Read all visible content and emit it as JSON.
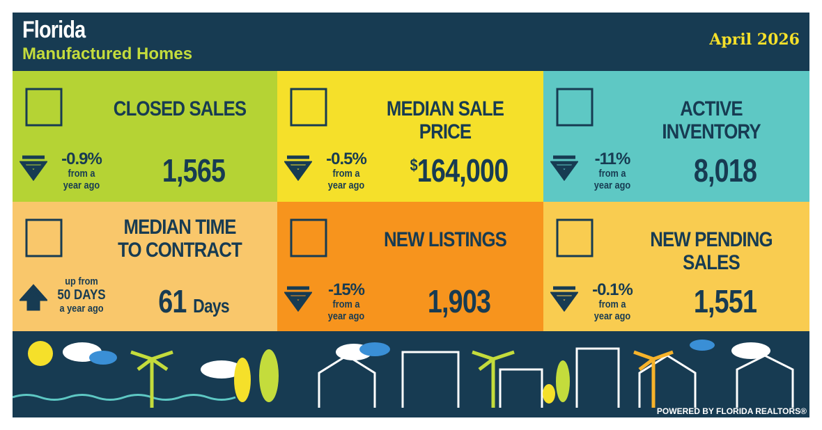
{
  "header": {
    "title": "Florida",
    "subtitle": "Manufactured Homes",
    "date": "April 2026"
  },
  "tiles": [
    {
      "title_lines": [
        "CLOSED SALES"
      ],
      "change": "-0.9%",
      "note_lines": [
        "from a",
        "year ago"
      ],
      "value": "1,565"
    },
    {
      "title_lines": [
        "MEDIAN SALE PRICE"
      ],
      "change": "-0.5%",
      "note_lines": [
        "from a",
        "year ago"
      ],
      "currency": "$",
      "value": "164,000"
    },
    {
      "title_lines": [
        "ACTIVE INVENTORY"
      ],
      "change": "-11%",
      "note_lines": [
        "from a",
        "year ago"
      ],
      "value": "8,018"
    },
    {
      "title_lines": [
        "MEDIAN TIME",
        "TO CONTRACT"
      ],
      "note_lines": [
        "up from",
        "50 DAYS",
        "a year ago"
      ],
      "value": "61",
      "unit": "Days"
    },
    {
      "title_lines": [
        "NEW LISTINGS"
      ],
      "change": "-15%",
      "note_lines": [
        "from a",
        "year ago"
      ],
      "value": "1,903"
    },
    {
      "title_lines": [
        "NEW PENDING SALES"
      ],
      "change": "-0.1%",
      "note_lines": [
        "from a",
        "year ago"
      ],
      "value": "1,551"
    }
  ],
  "footer": "POWERED BY FLORIDA REALTORS®"
}
